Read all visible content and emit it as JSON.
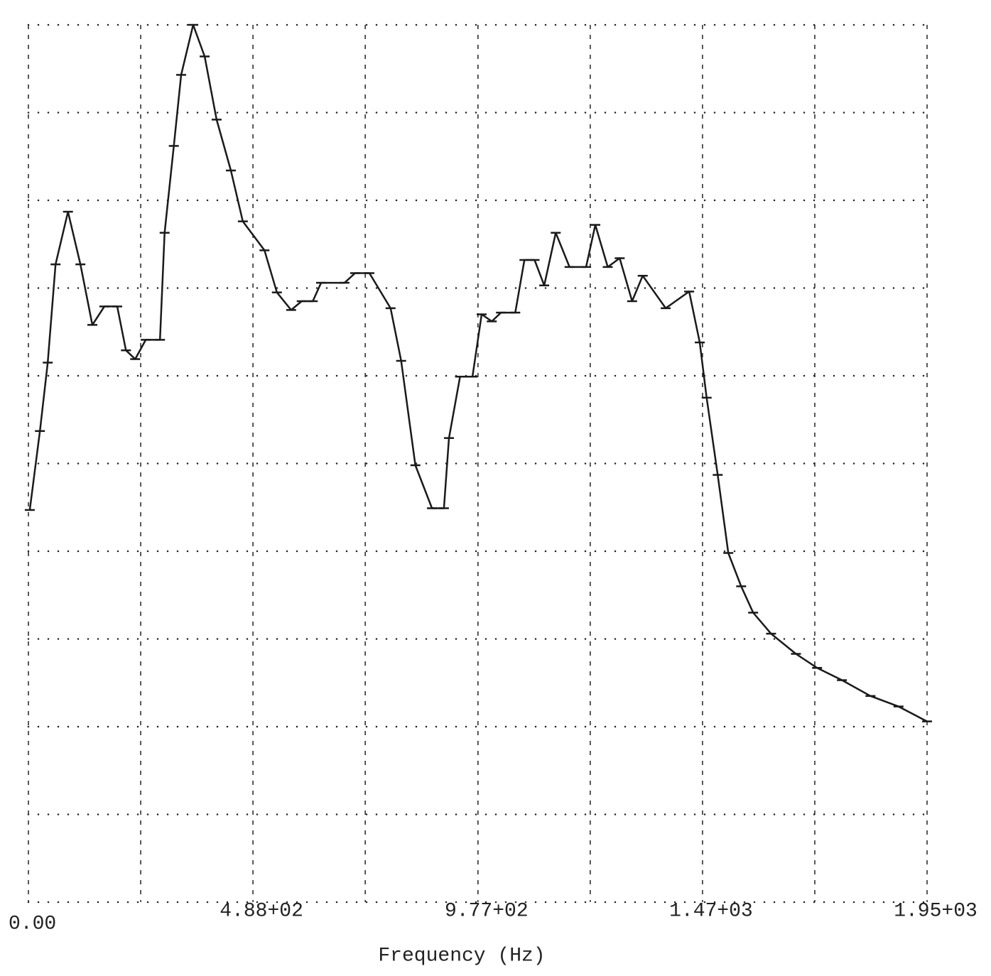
{
  "chart_data": {
    "type": "line",
    "x_label": "Frequency (Hz)",
    "x": [
      3,
      25,
      42,
      59,
      86,
      113,
      139,
      165,
      193,
      212,
      232,
      255,
      286,
      296,
      316,
      332,
      358,
      383,
      409,
      440,
      466,
      513,
      540,
      571,
      594,
      618,
      636,
      687,
      710,
      741,
      787,
      810,
      841,
      877,
      903,
      914,
      938,
      965,
      985,
      1007,
      1027,
      1058,
      1078,
      1100,
      1121,
      1146,
      1176,
      1212,
      1232,
      1259,
      1285,
      1312,
      1335,
      1385,
      1436,
      1459,
      1474,
      1498,
      1521,
      1549,
      1575,
      1614,
      1668,
      1714,
      1768,
      1830,
      1891,
      1953
    ],
    "series": [
      {
        "color": "#1a1a1a",
        "values": [
          4.47,
          5.37,
          6.15,
          7.27,
          7.87,
          7.27,
          6.58,
          6.79,
          6.79,
          6.29,
          6.19,
          6.41,
          6.41,
          7.63,
          8.62,
          9.43,
          10.0,
          9.64,
          8.92,
          8.34,
          7.76,
          7.43,
          6.95,
          6.75,
          6.85,
          6.85,
          7.06,
          7.06,
          7.17,
          7.17,
          6.77,
          6.17,
          4.98,
          4.49,
          4.49,
          5.29,
          5.99,
          5.99,
          6.7,
          6.62,
          6.72,
          6.72,
          7.32,
          7.32,
          7.03,
          7.63,
          7.24,
          7.24,
          7.72,
          7.24,
          7.34,
          6.85,
          7.14,
          6.77,
          6.96,
          6.38,
          5.75,
          4.87,
          3.98,
          3.6,
          3.3,
          3.06,
          2.83,
          2.67,
          2.53,
          2.35,
          2.23,
          2.06
        ]
      }
    ],
    "xlim": [
      0,
      1953
    ],
    "ylim": [
      0,
      10
    ],
    "xticks": [
      {
        "value": 0,
        "label": "0.00"
      },
      {
        "value": 488,
        "label": "4.88+02"
      },
      {
        "value": 977,
        "label": "9.77+02"
      },
      {
        "value": 1465,
        "label": "1.47+03"
      },
      {
        "value": 1953,
        "label": "1.95+03"
      }
    ],
    "x_minor_ticks": [
      244,
      732,
      1221,
      1709
    ],
    "y_gridlines": [
      0,
      1,
      2,
      3,
      4,
      5,
      6,
      7,
      8,
      9,
      10
    ],
    "grid": true
  }
}
